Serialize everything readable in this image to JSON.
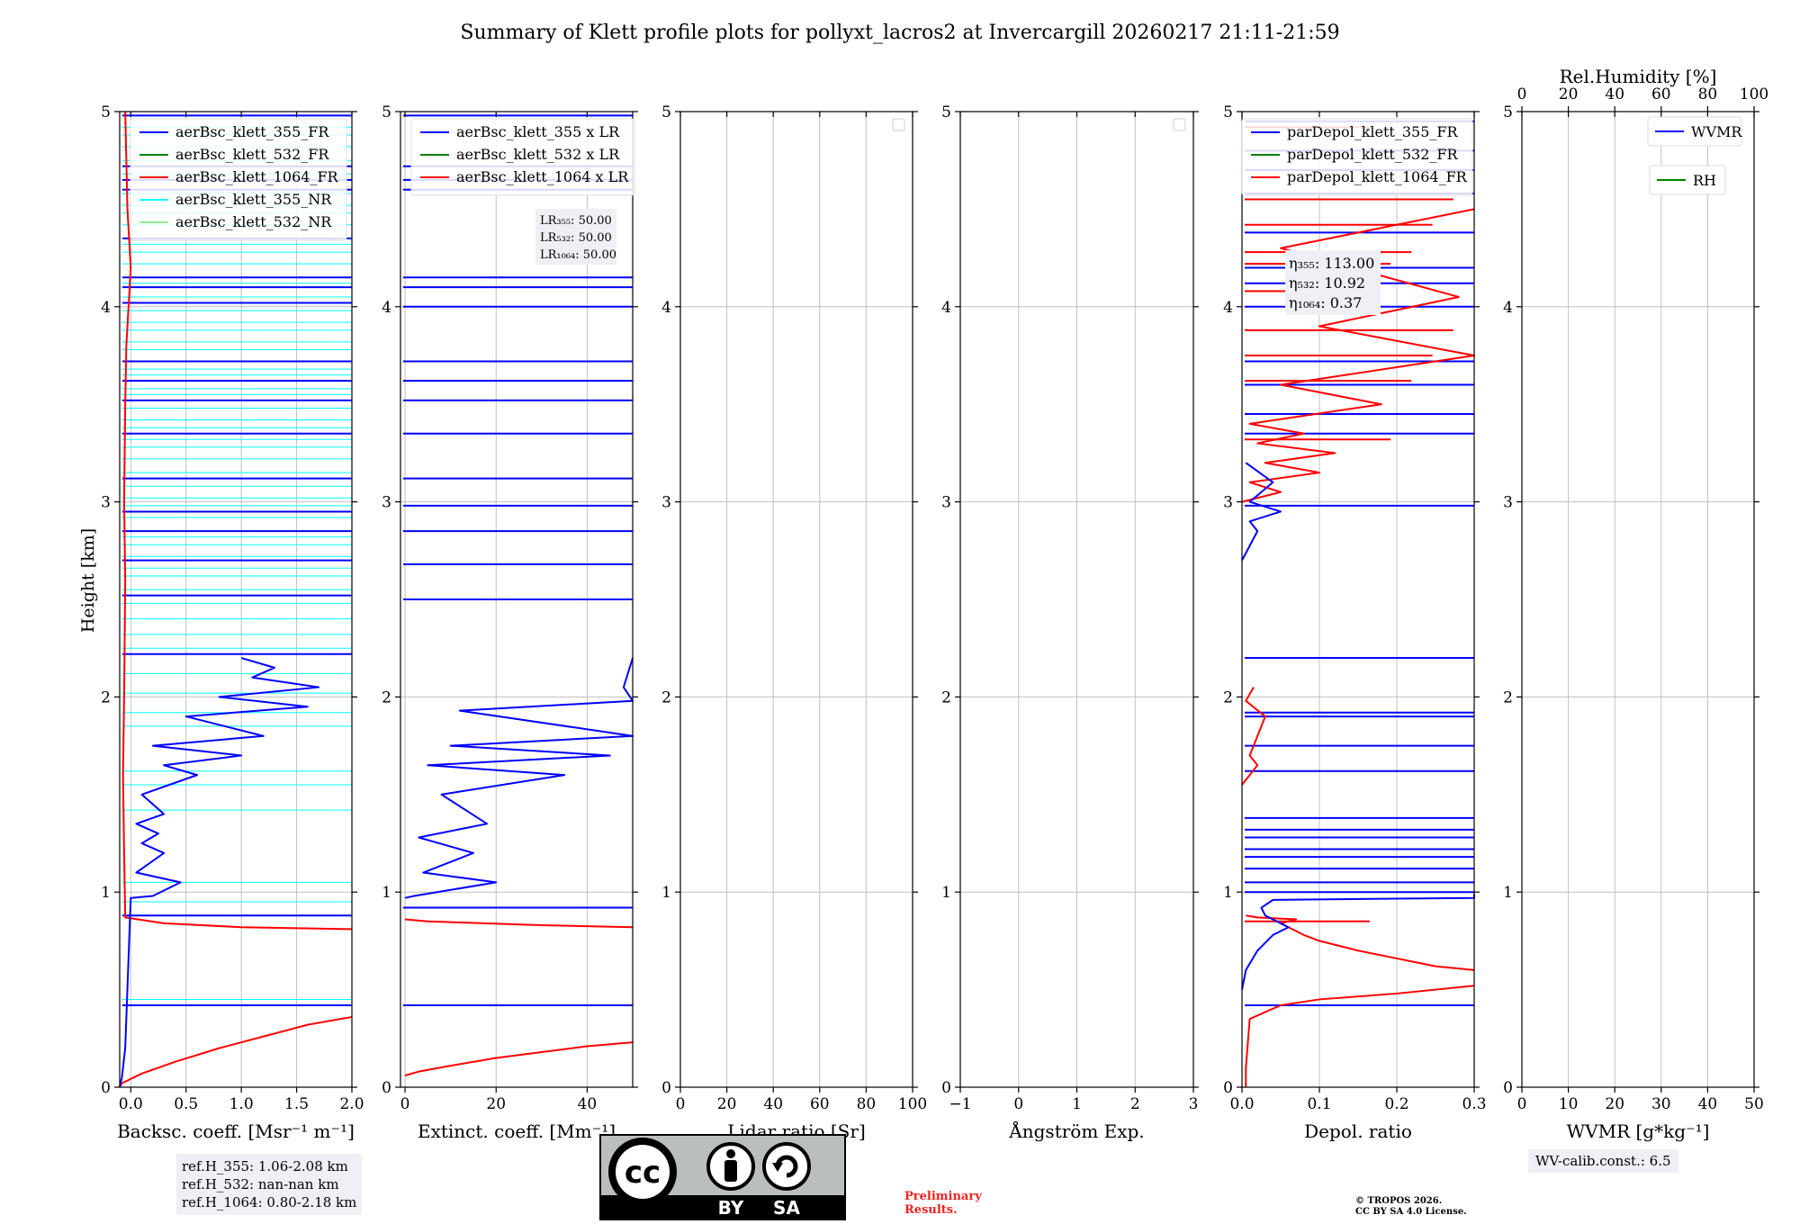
{
  "figure": {
    "title": "Summary of Klett profile plots for pollyxt_lacros2 at Invercargill 20260217 21:11-21:59",
    "ylabel": "Height [km]",
    "ref_h": [
      "ref.H_355: 1.06-2.08 km",
      "ref.H_532: nan-nan km",
      "ref.H_1064: 0.80-2.18 km"
    ],
    "wv_calib": "WV-calib.const.: 6.5",
    "preliminary": [
      "Preliminary",
      "Results."
    ],
    "copyright": [
      "© TROPOS 2026.",
      "CC BY SA 4.0 License."
    ],
    "license_badge": {
      "by": "BY",
      "sa": "SA",
      "cc": "cc"
    }
  },
  "colors": {
    "blue": "#0000ff",
    "green": "#008000",
    "red": "#ff0000",
    "cyan": "#00ffff",
    "lightgreen": "#90ee90",
    "grid": "#c0c0c0"
  },
  "chart_data": [
    {
      "type": "line",
      "id": "backscatter",
      "xlabel": "Backsc. coeff. [Msr⁻¹ m⁻¹]",
      "ylabel": "Height [km]",
      "xlim": [
        -0.1,
        2.0
      ],
      "ylim": [
        0,
        5
      ],
      "xticks": [
        0.0,
        0.5,
        1.0,
        1.5,
        2.0
      ],
      "xticklabels": [
        "0.0",
        "0.5",
        "1.0",
        "1.5",
        "2.0"
      ],
      "yticks": [
        0,
        1,
        2,
        3,
        4,
        5
      ],
      "legend": [
        "aerBsc_klett_355_FR",
        "aerBsc_klett_532_FR",
        "aerBsc_klett_1064_FR",
        "aerBsc_klett_355_NR",
        "aerBsc_klett_532_NR"
      ],
      "series": [
        {
          "name": "aerBsc_klett_1064_FR",
          "color": "red",
          "x": [
            2.0,
            1.6,
            1.2,
            0.8,
            0.4,
            0.1,
            -0.08,
            -0.1
          ],
          "y": [
            0.36,
            0.32,
            0.26,
            0.2,
            0.13,
            0.07,
            0.02,
            0.0
          ]
        },
        {
          "name": "aerBsc_klett_1064_FR",
          "color": "red",
          "x": [
            2.0,
            1.0,
            0.3,
            -0.05,
            -0.06,
            -0.07,
            -0.06,
            -0.05,
            -0.06,
            -0.05,
            -0.04,
            -0.02,
            0.0,
            -0.03,
            -0.05
          ],
          "y": [
            0.81,
            0.82,
            0.84,
            0.87,
            1.2,
            1.6,
            2.0,
            2.6,
            3.0,
            3.5,
            3.8,
            4.0,
            4.2,
            4.5,
            5.0
          ]
        },
        {
          "name": "aerBsc_klett_355_FR",
          "color": "blue",
          "x": [
            -0.1,
            -0.08,
            -0.05,
            0.0,
            0.2,
            0.45,
            0.05,
            0.3,
            0.1,
            0.25,
            0.05,
            0.3,
            0.1,
            0.6,
            0.3,
            1.0,
            0.2,
            1.2,
            0.5,
            1.6,
            0.8,
            1.7,
            1.1,
            1.3,
            1.0
          ],
          "y": [
            0.0,
            0.05,
            0.2,
            0.97,
            0.98,
            1.05,
            1.1,
            1.2,
            1.25,
            1.3,
            1.35,
            1.4,
            1.5,
            1.6,
            1.65,
            1.7,
            1.75,
            1.8,
            1.9,
            1.95,
            2.0,
            2.05,
            2.1,
            2.15,
            2.2
          ]
        }
      ],
      "hlines": [
        {
          "color": "blue",
          "y": [
            0.42,
            0.88,
            2.22,
            2.52,
            2.7,
            2.85,
            2.95,
            3.12,
            3.35,
            3.52,
            3.62,
            3.72,
            4.02,
            4.1,
            4.15,
            4.35,
            4.6,
            4.65,
            4.72,
            4.98
          ]
        },
        {
          "color": "cyan",
          "y": [
            0.45,
            0.95,
            1.05,
            1.42,
            1.55,
            1.62,
            1.85,
            1.92,
            2.02,
            2.12,
            2.25,
            2.32,
            2.4,
            2.48,
            2.55,
            2.62,
            2.66,
            2.72,
            2.78,
            2.82,
            2.92,
            2.98,
            3.02,
            3.08,
            3.15,
            3.22,
            3.28,
            3.32,
            3.38,
            3.42,
            3.48,
            3.55,
            3.58,
            3.65,
            3.68,
            3.78,
            3.82,
            3.88,
            3.92,
            3.98,
            4.05,
            4.12,
            4.22,
            4.28,
            4.32,
            4.42,
            4.48,
            4.52,
            4.58,
            4.68,
            4.75,
            4.82,
            4.88,
            4.92
          ]
        }
      ]
    },
    {
      "type": "line",
      "id": "extinction",
      "xlabel": "Extinct. coeff. [Mm⁻¹]",
      "xlim": [
        -1,
        50
      ],
      "ylim": [
        0,
        5
      ],
      "xticks": [
        0,
        20,
        40
      ],
      "xticklabels": [
        "0",
        "20",
        "40"
      ],
      "yticks": [
        0,
        1,
        2,
        3,
        4,
        5
      ],
      "legend": [
        "aerBsc_klett_355 x LR",
        "aerBsc_klett_532 x LR",
        "aerBsc_klett_1064 x LR"
      ],
      "lr_text": [
        "LR₃₅₅: 50.00",
        "LR₅₃₂: 50.00",
        "LR₁₀₆₄: 50.00"
      ],
      "series": [
        {
          "name": "aerBsc_klett_1064 x LR",
          "color": "red",
          "x": [
            50,
            40,
            30,
            20,
            10,
            3,
            0
          ],
          "y": [
            0.23,
            0.21,
            0.18,
            0.15,
            0.11,
            0.08,
            0.06
          ]
        },
        {
          "name": "aerBsc_klett_1064 x LR",
          "color": "red",
          "x": [
            50,
            30,
            5,
            0
          ],
          "y": [
            0.82,
            0.83,
            0.85,
            0.86
          ]
        },
        {
          "name": "aerBsc_klett_355 x LR",
          "color": "blue",
          "x": [
            0,
            2,
            20,
            4,
            15,
            3,
            18,
            8,
            35,
            5,
            45,
            10,
            50,
            12,
            50,
            48,
            50
          ],
          "y": [
            0.97,
            0.98,
            1.05,
            1.1,
            1.2,
            1.28,
            1.35,
            1.5,
            1.6,
            1.65,
            1.7,
            1.75,
            1.8,
            1.93,
            1.98,
            2.05,
            2.2
          ]
        }
      ],
      "hlines": [
        {
          "color": "blue",
          "y": [
            0.42,
            0.92,
            2.5,
            2.68,
            2.85,
            2.98,
            3.12,
            3.35,
            3.52,
            3.62,
            3.72,
            4.0,
            4.1,
            4.15,
            4.6,
            4.65,
            4.72,
            4.98
          ]
        }
      ]
    },
    {
      "type": "line",
      "id": "lidar_ratio",
      "xlabel": "Lidar ratio [Sr]",
      "xlim": [
        0,
        100
      ],
      "ylim": [
        0,
        5
      ],
      "xticks": [
        0,
        20,
        40,
        60,
        80,
        100
      ],
      "xticklabels": [
        "0",
        "20",
        "40",
        "60",
        "80",
        "100"
      ],
      "yticks": [
        0,
        1,
        2,
        3,
        4,
        5
      ],
      "legend": [],
      "series": []
    },
    {
      "type": "line",
      "id": "angstrom",
      "xlabel": "Ångström Exp.",
      "xlim": [
        -1,
        3
      ],
      "ylim": [
        0,
        5
      ],
      "xticks": [
        -1,
        0,
        1,
        2,
        3
      ],
      "xticklabels": [
        "−1",
        "0",
        "1",
        "2",
        "3"
      ],
      "yticks": [
        0,
        1,
        2,
        3,
        4,
        5
      ],
      "legend": [],
      "series": []
    },
    {
      "type": "line",
      "id": "depol",
      "xlabel": "Depol. ratio",
      "xlim": [
        0,
        0.3
      ],
      "ylim": [
        0,
        5
      ],
      "xticks": [
        0.0,
        0.1,
        0.2,
        0.3
      ],
      "xticklabels": [
        "0.0",
        "0.1",
        "0.2",
        "0.3"
      ],
      "yticks": [
        0,
        1,
        2,
        3,
        4,
        5
      ],
      "legend": [
        "parDepol_klett_355_FR",
        "parDepol_klett_532_FR",
        "parDepol_klett_1064_FR"
      ],
      "eta_text": [
        "η₃₅₅: 113.00",
        "η₅₃₂: 10.92",
        "η₁₀₆₄: 0.37"
      ],
      "series": [
        {
          "name": "parDepol_klett_1064_FR",
          "color": "red",
          "x": [
            0.3,
            0.2,
            0.1,
            0.05,
            0.01,
            0.005,
            0.005
          ],
          "y": [
            0.52,
            0.48,
            0.45,
            0.42,
            0.35,
            0.1,
            0.0
          ]
        },
        {
          "name": "parDepol_klett_1064_FR",
          "color": "red",
          "x": [
            0.3,
            0.25,
            0.15,
            0.1,
            0.08,
            0.06,
            0.05,
            0.07,
            0.02,
            0.005
          ],
          "y": [
            0.6,
            0.62,
            0.7,
            0.75,
            0.78,
            0.82,
            0.84,
            0.86,
            0.87,
            0.88
          ]
        },
        {
          "name": "parDepol_klett_1064_FR",
          "color": "red",
          "x": [
            0.0,
            0.02,
            0.01,
            0.03,
            0.005,
            0.015
          ],
          "y": [
            1.55,
            1.65,
            1.7,
            1.9,
            1.98,
            2.05
          ]
        },
        {
          "name": "parDepol_klett_1064_FR",
          "color": "red",
          "x": [
            0.0,
            0.05,
            0.01,
            0.1,
            0.03,
            0.12,
            0.02,
            0.08,
            0.01,
            0.18,
            0.05,
            0.3,
            0.1,
            0.28,
            0.05,
            0.3
          ],
          "y": [
            3.0,
            3.05,
            3.1,
            3.15,
            3.2,
            3.25,
            3.3,
            3.35,
            3.4,
            3.5,
            3.6,
            3.75,
            3.9,
            4.05,
            4.3,
            4.5
          ]
        },
        {
          "name": "parDepol_klett_355_FR",
          "color": "blue",
          "x": [
            0.0,
            0.005,
            0.02,
            0.04,
            0.06,
            0.03,
            0.025,
            0.04,
            0.3,
            0.3
          ],
          "y": [
            0.5,
            0.6,
            0.7,
            0.78,
            0.82,
            0.88,
            0.92,
            0.96,
            0.97,
            0.99
          ]
        },
        {
          "name": "parDepol_klett_355_FR",
          "color": "blue",
          "x": [
            0.0,
            0.02,
            0.01,
            0.05,
            0.01,
            0.04,
            0.005
          ],
          "y": [
            2.7,
            2.85,
            2.9,
            2.95,
            3.0,
            3.1,
            3.2
          ]
        }
      ],
      "hlines": [
        {
          "color": "blue",
          "y": [
            0.42,
            1.0,
            1.05,
            1.12,
            1.18,
            1.22,
            1.28,
            1.32,
            1.38,
            1.62,
            1.75,
            1.9,
            1.92,
            2.2,
            2.98,
            3.35,
            3.45,
            3.6,
            3.72,
            4.0,
            4.12,
            4.2,
            4.38,
            4.58,
            4.7,
            4.8,
            4.95
          ]
        },
        {
          "color": "red",
          "y": [
            0.85,
            3.32,
            3.62,
            3.75,
            3.88,
            4.08,
            4.22,
            4.28,
            4.42,
            4.55,
            4.92
          ]
        }
      ]
    },
    {
      "type": "line",
      "id": "wvmr",
      "xlabel": "WVMR [g*kg⁻¹]",
      "top_xlabel": "Rel.Humidity [%]",
      "xlim": [
        0,
        50
      ],
      "ylim": [
        0,
        5
      ],
      "xticks": [
        0,
        10,
        20,
        30,
        40,
        50
      ],
      "xticklabels": [
        "0",
        "10",
        "20",
        "30",
        "40",
        "50"
      ],
      "top_xticks": [
        0,
        20,
        40,
        60,
        80,
        100
      ],
      "top_xticklabels": [
        "0",
        "20",
        "40",
        "60",
        "80",
        "100"
      ],
      "yticks": [
        0,
        1,
        2,
        3,
        4,
        5
      ],
      "legend": [
        "WVMR",
        "RH"
      ],
      "series": []
    }
  ]
}
